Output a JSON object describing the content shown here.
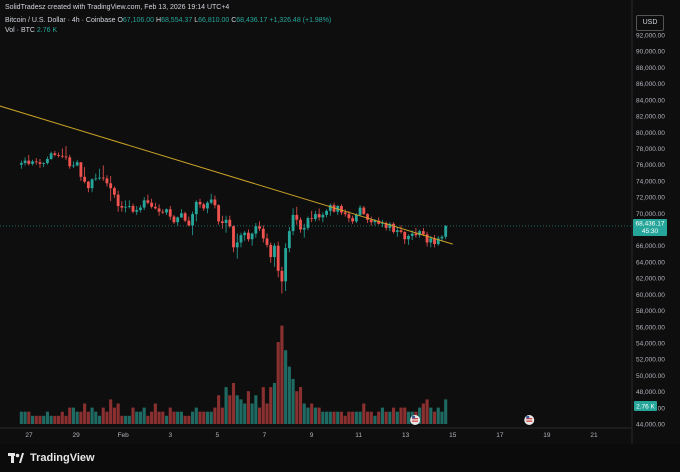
{
  "header": {
    "author_line": "SolidTradesz created with TradingView.com, Feb 13, 2026 19:14 UTC+4",
    "symbol": "Bitcoin / U.S. Dollar · 4h · Coinbase",
    "o_label": "O",
    "o_value": "67,106.00",
    "h_label": "H",
    "h_value": "68,554.37",
    "l_label": "L",
    "l_value": "66,810.00",
    "c_label": "C",
    "c_value": "68,436.17",
    "change": "+1,326.48 (+1.98%)",
    "vol_label": "Vol · BTC",
    "vol_value": "2.76 K"
  },
  "currency_button": "USD",
  "footer": {
    "brand": "TradingView"
  },
  "colors": {
    "up": "#26a69a",
    "down": "#ef5350",
    "vol_up": "#1f6b64",
    "vol_down": "#8a3030",
    "trendline": "#c9a227",
    "price_tag": "#26a69a"
  },
  "icons": [
    "event-flag-icon",
    "event-flag-icon",
    "tradingview-logo-icon"
  ],
  "chart_data": {
    "type": "candlestick",
    "price_axis": {
      "ticks": [
        92000,
        90000,
        88000,
        86000,
        84000,
        82000,
        80000,
        78000,
        76000,
        74000,
        72000,
        70000,
        68000,
        66000,
        64000,
        62000,
        60000,
        58000,
        56000,
        54000,
        52000,
        50000,
        48000,
        46000,
        44000
      ],
      "tick_labels": [
        "92,000.00",
        "90,000.00",
        "88,000.00",
        "86,000.00",
        "84,000.00",
        "82,000.00",
        "80,000.00",
        "78,000.00",
        "76,000.00",
        "74,000.00",
        "72,000.00",
        "70,000.00",
        "68,000.00",
        "66,000.00",
        "64,000.00",
        "62,000.00",
        "60,000.00",
        "58,000.00",
        "56,000.00",
        "54,000.00",
        "52,000.00",
        "50,000.00",
        "48,000.00",
        "46,000.00",
        "44,000.00"
      ]
    },
    "time_axis": {
      "labels": [
        "27",
        "29",
        "Feb",
        "3",
        "5",
        "7",
        "9",
        "11",
        "13",
        "15",
        "17",
        "19",
        "21"
      ],
      "positions": [
        26,
        30,
        34,
        38,
        42,
        46,
        50,
        54,
        58,
        62,
        66,
        70,
        74
      ]
    },
    "last_price": {
      "value": "68,436.17",
      "countdown": "45:30"
    },
    "volume_last": "2.76 K",
    "event_flags": [
      58.8,
      68.5
    ],
    "trendline": [
      [
        20.0,
        84800
      ],
      [
        62.0,
        66200
      ]
    ],
    "candles": [
      [
        76000,
        76500,
        75500,
        76200,
        3
      ],
      [
        76200,
        76900,
        75900,
        76500,
        3
      ],
      [
        76500,
        77200,
        75900,
        76100,
        3
      ],
      [
        76100,
        76600,
        75900,
        76400,
        2
      ],
      [
        76400,
        76800,
        76000,
        76300,
        2
      ],
      [
        76300,
        76700,
        75600,
        76100,
        2
      ],
      [
        76100,
        76300,
        75700,
        76200,
        2
      ],
      [
        76200,
        77000,
        76000,
        76700,
        3
      ],
      [
        76700,
        77600,
        76600,
        77400,
        2
      ],
      [
        77400,
        77700,
        77000,
        77200,
        2
      ],
      [
        77200,
        77500,
        76900,
        77100,
        2
      ],
      [
        77100,
        78000,
        76800,
        77000,
        3
      ],
      [
        77000,
        78300,
        76600,
        76900,
        2
      ],
      [
        76900,
        77200,
        75500,
        75800,
        4
      ],
      [
        75800,
        76400,
        75600,
        75900,
        4
      ],
      [
        75900,
        76600,
        75800,
        76300,
        3
      ],
      [
        76300,
        76300,
        74000,
        74500,
        3
      ],
      [
        74500,
        75700,
        73700,
        73900,
        5
      ],
      [
        73900,
        74000,
        72600,
        73100,
        3
      ],
      [
        73100,
        74300,
        72600,
        74200,
        4
      ],
      [
        74200,
        74900,
        74000,
        74300,
        3
      ],
      [
        74300,
        75500,
        74100,
        74400,
        2
      ],
      [
        74400,
        75900,
        74000,
        74300,
        4
      ],
      [
        74300,
        74700,
        73300,
        73700,
        3
      ],
      [
        73700,
        74600,
        71500,
        73100,
        6
      ],
      [
        73100,
        73300,
        71900,
        72300,
        4
      ],
      [
        72300,
        72800,
        70200,
        70900,
        5
      ],
      [
        70900,
        71500,
        70200,
        70700,
        2
      ],
      [
        70700,
        71600,
        70100,
        70800,
        2
      ],
      [
        70800,
        71600,
        70600,
        70900,
        2
      ],
      [
        70900,
        71200,
        70000,
        70200,
        4
      ],
      [
        70200,
        70900,
        69800,
        70400,
        3
      ],
      [
        70400,
        71000,
        70100,
        70700,
        3
      ],
      [
        70700,
        72000,
        70400,
        71600,
        4
      ],
      [
        71600,
        72300,
        71100,
        71300,
        2
      ],
      [
        71300,
        71800,
        70600,
        70800,
        3
      ],
      [
        70800,
        71300,
        70500,
        70600,
        5
      ],
      [
        70600,
        71100,
        69700,
        70200,
        3
      ],
      [
        70200,
        70500,
        69900,
        70100,
        3
      ],
      [
        70100,
        70600,
        69800,
        70500,
        2
      ],
      [
        70500,
        70900,
        69200,
        69600,
        4
      ],
      [
        69600,
        69800,
        68700,
        68900,
        3
      ],
      [
        68900,
        69600,
        68500,
        69500,
        3
      ],
      [
        69500,
        70500,
        69400,
        70000,
        3
      ],
      [
        70000,
        70200,
        68900,
        69100,
        2
      ],
      [
        69100,
        69600,
        68400,
        68500,
        2
      ],
      [
        68500,
        70200,
        67300,
        69900,
        3
      ],
      [
        69900,
        71600,
        69000,
        71400,
        4
      ],
      [
        71400,
        71800,
        70700,
        71100,
        3
      ],
      [
        71100,
        71300,
        70300,
        70600,
        3
      ],
      [
        70600,
        71500,
        70000,
        71300,
        3
      ],
      [
        71300,
        72400,
        71100,
        71700,
        3
      ],
      [
        71700,
        72200,
        70600,
        71000,
        4
      ],
      [
        71000,
        71100,
        68600,
        69000,
        7
      ],
      [
        69000,
        69700,
        68100,
        68800,
        4
      ],
      [
        68800,
        69700,
        67600,
        69200,
        9
      ],
      [
        69200,
        69700,
        68200,
        68400,
        7
      ],
      [
        68400,
        68500,
        65200,
        65800,
        10
      ],
      [
        65800,
        67500,
        64400,
        66400,
        7
      ],
      [
        66400,
        67600,
        65800,
        67300,
        6
      ],
      [
        67300,
        67800,
        66600,
        67600,
        5
      ],
      [
        67600,
        68000,
        66500,
        66800,
        8
      ],
      [
        66800,
        67600,
        66000,
        67500,
        5
      ],
      [
        67500,
        68800,
        67000,
        68400,
        7
      ],
      [
        68400,
        69000,
        67800,
        68100,
        4
      ],
      [
        68100,
        68500,
        66400,
        66900,
        9
      ],
      [
        66900,
        67500,
        65800,
        66100,
        5
      ],
      [
        66100,
        66400,
        63900,
        64600,
        9
      ],
      [
        64600,
        66300,
        63400,
        66000,
        10
      ],
      [
        66000,
        66500,
        62100,
        62900,
        20
      ],
      [
        62900,
        63400,
        60100,
        61600,
        24
      ],
      [
        61600,
        66300,
        60400,
        65700,
        18
      ],
      [
        65700,
        68300,
        65200,
        67800,
        14
      ],
      [
        67800,
        70600,
        67300,
        69800,
        11
      ],
      [
        69800,
        70800,
        68600,
        69200,
        8
      ],
      [
        69200,
        69500,
        67600,
        68000,
        9
      ],
      [
        68000,
        68700,
        67000,
        68200,
        5
      ],
      [
        68200,
        69600,
        67900,
        69400,
        4
      ],
      [
        69400,
        70300,
        68900,
        69300,
        5
      ],
      [
        69300,
        70300,
        69000,
        69900,
        4
      ],
      [
        69900,
        70600,
        69100,
        69500,
        4
      ],
      [
        69500,
        70100,
        68900,
        69800,
        3
      ],
      [
        69800,
        70500,
        69500,
        70300,
        3
      ],
      [
        70300,
        71200,
        69700,
        71000,
        3
      ],
      [
        71000,
        71300,
        70100,
        70200,
        3
      ],
      [
        70200,
        71000,
        69800,
        70900,
        3
      ],
      [
        70900,
        71100,
        69800,
        70100,
        3
      ],
      [
        70100,
        70500,
        69600,
        69900,
        2
      ],
      [
        69900,
        70300,
        68900,
        69400,
        3
      ],
      [
        69400,
        69700,
        68700,
        69000,
        3
      ],
      [
        69000,
        70000,
        68800,
        69800,
        3
      ],
      [
        69800,
        71000,
        69600,
        70700,
        3
      ],
      [
        70700,
        70900,
        69800,
        69900,
        5
      ],
      [
        69900,
        70000,
        68800,
        69200,
        3
      ],
      [
        69200,
        69600,
        68500,
        68900,
        3
      ],
      [
        68900,
        69300,
        68500,
        69100,
        2
      ],
      [
        69100,
        69500,
        68600,
        68700,
        3
      ],
      [
        68700,
        69200,
        68300,
        68800,
        4
      ],
      [
        68800,
        69000,
        67900,
        68200,
        3
      ],
      [
        68200,
        68900,
        67800,
        68700,
        3
      ],
      [
        68700,
        68900,
        67500,
        67700,
        4
      ],
      [
        67700,
        68300,
        67100,
        67900,
        3
      ],
      [
        67900,
        68500,
        67500,
        67700,
        4
      ],
      [
        67700,
        67800,
        66200,
        66800,
        4
      ],
      [
        66800,
        67400,
        66100,
        67200,
        3
      ],
      [
        67200,
        67900,
        66700,
        67500,
        3
      ],
      [
        67500,
        68200,
        67000,
        67300,
        3
      ],
      [
        67300,
        68000,
        67000,
        67800,
        4
      ],
      [
        67800,
        68200,
        67200,
        67400,
        5
      ],
      [
        67400,
        67700,
        65900,
        66400,
        6
      ],
      [
        66400,
        67200,
        65800,
        66900,
        4
      ],
      [
        66900,
        67300,
        65800,
        66200,
        3
      ],
      [
        66200,
        67200,
        66000,
        66900,
        4
      ],
      [
        66900,
        67300,
        66500,
        67100,
        3
      ],
      [
        67100,
        68554,
        66810,
        68436,
        6
      ]
    ]
  }
}
